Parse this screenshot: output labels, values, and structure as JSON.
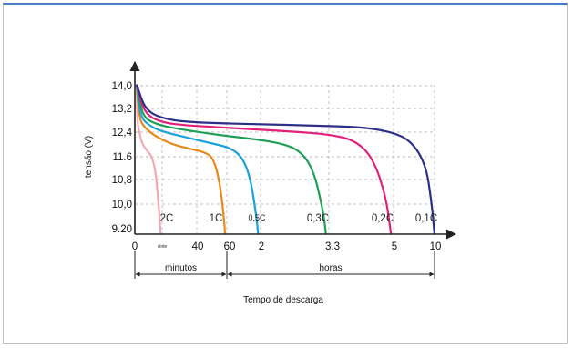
{
  "chart_data": {
    "type": "line",
    "title": "",
    "ylabel": "tensão (V)",
    "xlabel": "Tempo de descarga",
    "y_ticks": [
      "14,0",
      "13,2",
      "12,4",
      "11.6",
      "10,8",
      "10,0",
      "9.20"
    ],
    "x_ticks": [
      "0",
      "vinte",
      "40",
      "60",
      "2",
      "3.3",
      "5",
      "10"
    ],
    "x_ranges": [
      {
        "label": "minutos",
        "from": "0",
        "to": "60"
      },
      {
        "label": "horas",
        "from": "60",
        "to": "10"
      }
    ],
    "ylim": [
      9.2,
      14.6
    ],
    "grid": true,
    "series": [
      {
        "name": "2C",
        "color": "#f3a9b3",
        "cutoff_at": "vinte",
        "points": [
          [
            0,
            14.3
          ],
          [
            0.03,
            13.0
          ],
          [
            0.1,
            12.7
          ],
          [
            0.2,
            12.3
          ],
          [
            0.4,
            12.05
          ],
          [
            0.6,
            11.85
          ],
          [
            0.75,
            11.3
          ],
          [
            0.85,
            10.3
          ],
          [
            0.92,
            9.5
          ],
          [
            0.94,
            9.2
          ]
        ]
      },
      {
        "name": "1C",
        "color": "#e8891a",
        "cutoff_at": "60",
        "points": [
          [
            0,
            14.3
          ],
          [
            0.03,
            13.1
          ],
          [
            0.1,
            12.8
          ],
          [
            0.2,
            12.55
          ],
          [
            0.4,
            12.25
          ],
          [
            0.6,
            12.1
          ],
          [
            0.75,
            12.0
          ],
          [
            0.85,
            11.8
          ],
          [
            0.92,
            11.0
          ],
          [
            0.97,
            9.7
          ],
          [
            0.98,
            9.2
          ]
        ]
      },
      {
        "name": "0,5C",
        "color": "#1ea0d8",
        "cutoff_at": "2",
        "points": [
          [
            0,
            14.3
          ],
          [
            0.03,
            13.2
          ],
          [
            0.1,
            12.9
          ],
          [
            0.2,
            12.7
          ],
          [
            0.4,
            12.5
          ],
          [
            0.6,
            12.3
          ],
          [
            0.75,
            12.15
          ],
          [
            0.85,
            11.85
          ],
          [
            0.92,
            11.1
          ],
          [
            0.97,
            9.7
          ],
          [
            0.98,
            9.2
          ]
        ]
      },
      {
        "name": "0,3C",
        "color": "#1f9e55",
        "cutoff_at": "3.3",
        "points": [
          [
            0,
            14.3
          ],
          [
            0.03,
            13.2
          ],
          [
            0.1,
            12.95
          ],
          [
            0.2,
            12.8
          ],
          [
            0.4,
            12.6
          ],
          [
            0.6,
            12.45
          ],
          [
            0.75,
            12.3
          ],
          [
            0.85,
            12.05
          ],
          [
            0.92,
            11.4
          ],
          [
            0.97,
            10.0
          ],
          [
            0.985,
            9.2
          ]
        ]
      },
      {
        "name": "0,2C",
        "color": "#e0207a",
        "cutoff_at": "5",
        "points": [
          [
            0,
            14.3
          ],
          [
            0.03,
            13.3
          ],
          [
            0.1,
            13.0
          ],
          [
            0.2,
            12.9
          ],
          [
            0.4,
            12.8
          ],
          [
            0.6,
            12.7
          ],
          [
            0.75,
            12.6
          ],
          [
            0.85,
            12.4
          ],
          [
            0.92,
            11.8
          ],
          [
            0.97,
            10.5
          ],
          [
            0.99,
            9.2
          ]
        ]
      },
      {
        "name": "0,1C",
        "color": "#2b2f87",
        "cutoff_at": "10",
        "points": [
          [
            0,
            14.3
          ],
          [
            0.03,
            13.4
          ],
          [
            0.1,
            13.1
          ],
          [
            0.2,
            13.0
          ],
          [
            0.4,
            12.95
          ],
          [
            0.6,
            12.9
          ],
          [
            0.75,
            12.85
          ],
          [
            0.85,
            12.7
          ],
          [
            0.92,
            12.4
          ],
          [
            0.97,
            11.6
          ],
          [
            0.99,
            10.3
          ],
          [
            1.0,
            9.2
          ]
        ]
      }
    ]
  },
  "colors": {
    "frame_accent": "#4a7fc6",
    "axis": "#222222",
    "grid": "#aaaaaa"
  }
}
